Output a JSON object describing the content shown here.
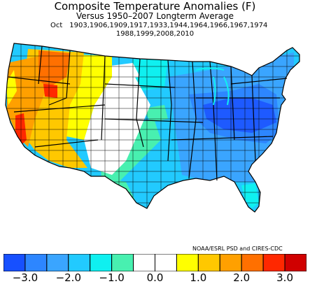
{
  "title": "Composite Temperature Anomalies (F)",
  "subtitle": "Versus 1950–2007 Longterm Average",
  "month": "Oct",
  "years_line1": "1903,1906,1909,1917,1933,1944,1964,1966,1967,1974",
  "years_line2": "1988,1999,2008,2010",
  "credit": "NOAA/ESRL PSD and CIRES-CDC",
  "colorbar": {
    "colors": [
      "#1750ff",
      "#2d86ff",
      "#3aa5ff",
      "#22caff",
      "#0ff0f0",
      "#48f0b0",
      "#ffffff",
      "#ffffff",
      "#ffff00",
      "#ffc800",
      "#ffa000",
      "#ff7000",
      "#ff2800",
      "#d00000"
    ],
    "ticks": [
      {
        "label": "−3.0"
      },
      {
        "label": "−2.0"
      },
      {
        "label": "−1.0"
      },
      {
        "label": "0.0"
      },
      {
        "label": "1.0"
      },
      {
        "label": "2.0"
      },
      {
        "label": "3.0"
      }
    ]
  },
  "map_colors": {
    "darkest_blue": "#1e5aff",
    "dark_blue": "#2d86ff",
    "blue": "#3aa5ff",
    "light_blue": "#22caff",
    "cyan": "#0ff0f0",
    "teal": "#48f0b0",
    "white": "#ffffff",
    "yellow": "#ffff00",
    "gold": "#ffc800",
    "orange": "#ffa000",
    "dark_orange": "#ff7000",
    "red": "#ff2800"
  }
}
